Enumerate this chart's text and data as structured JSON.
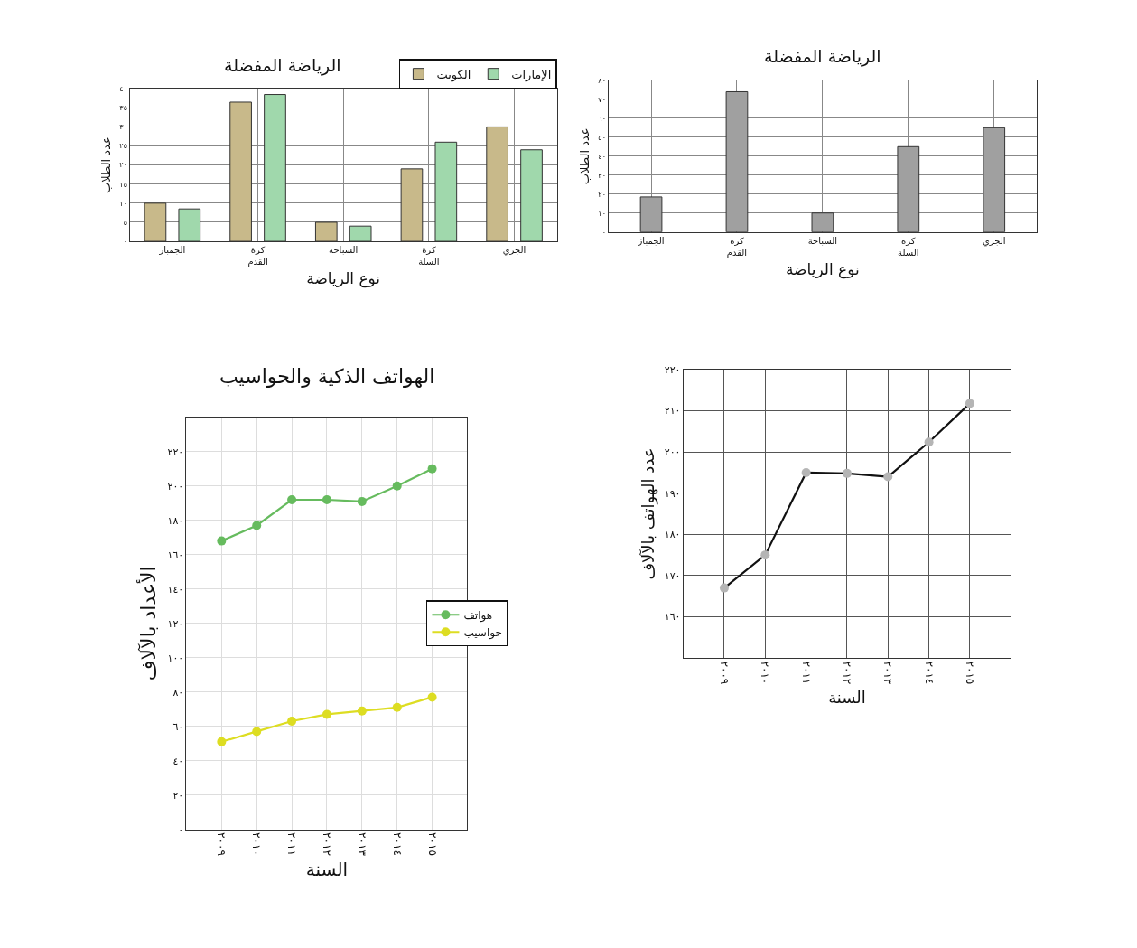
{
  "chart_data": [
    {
      "type": "bar",
      "title": "الرياضة المفضلة",
      "xlabel": "نوع الرياضة",
      "ylabel": "عدد الطلاب",
      "categories": [
        "الجمباز",
        "كرة القدم",
        "السباحة",
        "كرة السلة",
        "الجري"
      ],
      "series": [
        {
          "name": "الكويت",
          "color": "#c8b98a",
          "values": [
            10,
            36.5,
            5,
            19,
            30
          ]
        },
        {
          "name": "الإمارات",
          "color": "#a0d8ac",
          "values": [
            8.5,
            38.5,
            4,
            26,
            24
          ]
        }
      ],
      "ylim": [
        0,
        40
      ],
      "yticks": [
        {
          "value": 0,
          "label": "٠"
        },
        {
          "value": 5,
          "label": "٥"
        },
        {
          "value": 10,
          "label": "١٠"
        },
        {
          "value": 15,
          "label": "١٥"
        },
        {
          "value": 20,
          "label": "٢٠"
        },
        {
          "value": 25,
          "label": "٢٥"
        },
        {
          "value": 30,
          "label": "٣٠"
        },
        {
          "value": 35,
          "label": "٣٥"
        },
        {
          "value": 40,
          "label": "٤٠"
        }
      ],
      "grid": true,
      "legend": "top right"
    },
    {
      "type": "bar",
      "title": "الرياضة المفضلة",
      "xlabel": "نوع الرياضة",
      "ylabel": "عدد الطلاب",
      "categories": [
        "الجمباز",
        "كرة القدم",
        "السباحة",
        "كرة السلة",
        "الجري"
      ],
      "series": [
        {
          "color": "#a0a0a0",
          "values": [
            18.5,
            74,
            10,
            45,
            55
          ]
        }
      ],
      "ylim": [
        0,
        80
      ],
      "yticks": [
        {
          "value": 0,
          "label": "٠"
        },
        {
          "value": 10,
          "label": "١٠"
        },
        {
          "value": 20,
          "label": "٢٠"
        },
        {
          "value": 30,
          "label": "٣٠"
        },
        {
          "value": 40,
          "label": "٤٠"
        },
        {
          "value": 50,
          "label": "٥٠"
        },
        {
          "value": 60,
          "label": "٦٠"
        },
        {
          "value": 70,
          "label": "٧٠"
        },
        {
          "value": 80,
          "label": "٨٠"
        }
      ],
      "grid": true
    },
    {
      "type": "line",
      "title": "الهواتف الذكية والحواسيب",
      "xlabel": "السنة",
      "ylabel": "الأعداد بالآلاف",
      "categories": [
        "٢٠٠٩",
        "٢٠١٠",
        "٢٠١١",
        "٢٠١٢",
        "٢٠١٣",
        "٢٠١٤",
        "٢٠١٥"
      ],
      "series": [
        {
          "name": "هواتف",
          "color": "#66bb5e",
          "values": [
            168,
            177,
            192,
            192,
            191,
            200,
            210
          ]
        },
        {
          "name": "حواسيب",
          "color": "#dddd22",
          "values": [
            51,
            57,
            63,
            67,
            69,
            71,
            77
          ]
        }
      ],
      "ylim": [
        0,
        240
      ],
      "yticks": [
        {
          "value": 0,
          "label": "٠"
        },
        {
          "value": 20,
          "label": "٢٠"
        },
        {
          "value": 40,
          "label": "٤٠"
        },
        {
          "value": 60,
          "label": "٦٠"
        },
        {
          "value": 80,
          "label": "٨٠"
        },
        {
          "value": 100,
          "label": "١٠٠"
        },
        {
          "value": 120,
          "label": "١٢٠"
        },
        {
          "value": 140,
          "label": "١٤٠"
        },
        {
          "value": 160,
          "label": "١٦٠"
        },
        {
          "value": 180,
          "label": "١٨٠"
        },
        {
          "value": 200,
          "label": "٢٠٠"
        },
        {
          "value": 220,
          "label": "٢٢٠"
        }
      ],
      "grid": true,
      "legend": "right",
      "marker": "circle",
      "line_style": "solid"
    },
    {
      "type": "line",
      "xlabel": "السنة",
      "ylabel": "عدد الهواتف بالآلاف",
      "categories": [
        "٢٠٠٩",
        "٢٠١٠",
        "٢٠١١",
        "٢٠١٢",
        "٢٠١٣",
        "٢٠١٤",
        "٢٠١٥"
      ],
      "series": [
        {
          "color": "#111111",
          "values": [
            167,
            175,
            195,
            194.8,
            194,
            202.4,
            211.8
          ]
        }
      ],
      "ylim": [
        150,
        220
      ],
      "yticks": [
        {
          "value": 160,
          "label": "١٦٠"
        },
        {
          "value": 170,
          "label": "١٧٠"
        },
        {
          "value": 180,
          "label": "١٨٠"
        },
        {
          "value": 190,
          "label": "١٩٠"
        },
        {
          "value": 200,
          "label": "٢٠٠"
        },
        {
          "value": 210,
          "label": "٢١٠"
        },
        {
          "value": 220,
          "label": "٢٢٠"
        }
      ],
      "grid": true,
      "marker": "circle",
      "line_style": "solid"
    }
  ]
}
